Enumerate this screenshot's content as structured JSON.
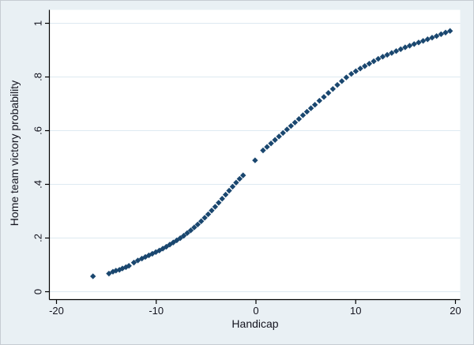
{
  "figure": {
    "background_color": "#e9f0f4",
    "plot_background_color": "#ffffff",
    "gridline_color": "#dde9f1",
    "axis_color": "#000000",
    "text_color": "#14141f",
    "border_color": "#c6ccd2"
  },
  "chart_data": {
    "type": "scatter",
    "title": "",
    "xlabel": "Handicap",
    "ylabel": "Home team victory probability",
    "xlim": [
      -20.65,
      20.55
    ],
    "ylim": [
      -0.033,
      1.047
    ],
    "x_ticks": [
      -20,
      -10,
      0,
      10,
      20
    ],
    "x_tick_labels": [
      "-20",
      "-10",
      "0",
      "10",
      "20"
    ],
    "y_ticks": [
      0,
      0.2,
      0.4,
      0.6,
      0.8,
      1
    ],
    "y_tick_labels": [
      "0",
      ".2",
      ".4",
      ".6",
      ".8",
      "1"
    ],
    "grid": true,
    "legend_position": "none",
    "marker": {
      "shape": "diamond",
      "color": "#1a476f",
      "half_size_px": 3.7
    },
    "series": [
      {
        "name": "home-team-victory-probability",
        "points": [
          [
            -16.3,
            0.056
          ],
          [
            -14.7,
            0.066
          ],
          [
            -14.3,
            0.073
          ],
          [
            -14.0,
            0.077
          ],
          [
            -13.65,
            0.08
          ],
          [
            -13.35,
            0.085
          ],
          [
            -13.0,
            0.09
          ],
          [
            -12.7,
            0.095
          ],
          [
            -12.2,
            0.107
          ],
          [
            -11.8,
            0.115
          ],
          [
            -11.4,
            0.122
          ],
          [
            -11.05,
            0.128
          ],
          [
            -10.7,
            0.134
          ],
          [
            -10.35,
            0.14
          ],
          [
            -10.0,
            0.146
          ],
          [
            -9.65,
            0.152
          ],
          [
            -9.3,
            0.159
          ],
          [
            -8.95,
            0.166
          ],
          [
            -8.6,
            0.174
          ],
          [
            -8.25,
            0.182
          ],
          [
            -7.9,
            0.19
          ],
          [
            -7.55,
            0.198
          ],
          [
            -7.2,
            0.207
          ],
          [
            -6.85,
            0.217
          ],
          [
            -6.5,
            0.227
          ],
          [
            -6.15,
            0.238
          ],
          [
            -5.8,
            0.249
          ],
          [
            -5.45,
            0.261
          ],
          [
            -5.1,
            0.274
          ],
          [
            -4.75,
            0.287
          ],
          [
            -4.4,
            0.301
          ],
          [
            -4.05,
            0.315
          ],
          [
            -3.7,
            0.33
          ],
          [
            -3.35,
            0.345
          ],
          [
            -3.0,
            0.36
          ],
          [
            -2.65,
            0.375
          ],
          [
            -2.3,
            0.39
          ],
          [
            -1.95,
            0.405
          ],
          [
            -1.6,
            0.419
          ],
          [
            -1.25,
            0.432
          ],
          [
            -0.05,
            0.488
          ],
          [
            0.75,
            0.525
          ],
          [
            1.15,
            0.538
          ],
          [
            1.55,
            0.551
          ],
          [
            1.95,
            0.564
          ],
          [
            2.35,
            0.577
          ],
          [
            2.75,
            0.59
          ],
          [
            3.15,
            0.603
          ],
          [
            3.55,
            0.616
          ],
          [
            3.95,
            0.629
          ],
          [
            4.35,
            0.642
          ],
          [
            4.75,
            0.656
          ],
          [
            5.15,
            0.669
          ],
          [
            5.55,
            0.682
          ],
          [
            5.95,
            0.695
          ],
          [
            6.4,
            0.71
          ],
          [
            6.85,
            0.724
          ],
          [
            7.3,
            0.739
          ],
          [
            7.75,
            0.754
          ],
          [
            8.2,
            0.769
          ],
          [
            8.65,
            0.783
          ],
          [
            9.1,
            0.797
          ],
          [
            9.6,
            0.81
          ],
          [
            10.05,
            0.82
          ],
          [
            10.5,
            0.83
          ],
          [
            10.95,
            0.839
          ],
          [
            11.4,
            0.848
          ],
          [
            11.85,
            0.857
          ],
          [
            12.3,
            0.866
          ],
          [
            12.75,
            0.874
          ],
          [
            13.2,
            0.881
          ],
          [
            13.65,
            0.888
          ],
          [
            14.1,
            0.895
          ],
          [
            14.55,
            0.902
          ],
          [
            15.0,
            0.909
          ],
          [
            15.45,
            0.915
          ],
          [
            15.9,
            0.921
          ],
          [
            16.35,
            0.927
          ],
          [
            16.8,
            0.933
          ],
          [
            17.25,
            0.939
          ],
          [
            17.7,
            0.945
          ],
          [
            18.15,
            0.951
          ],
          [
            18.6,
            0.958
          ],
          [
            19.05,
            0.964
          ],
          [
            19.5,
            0.97
          ]
        ]
      }
    ]
  }
}
